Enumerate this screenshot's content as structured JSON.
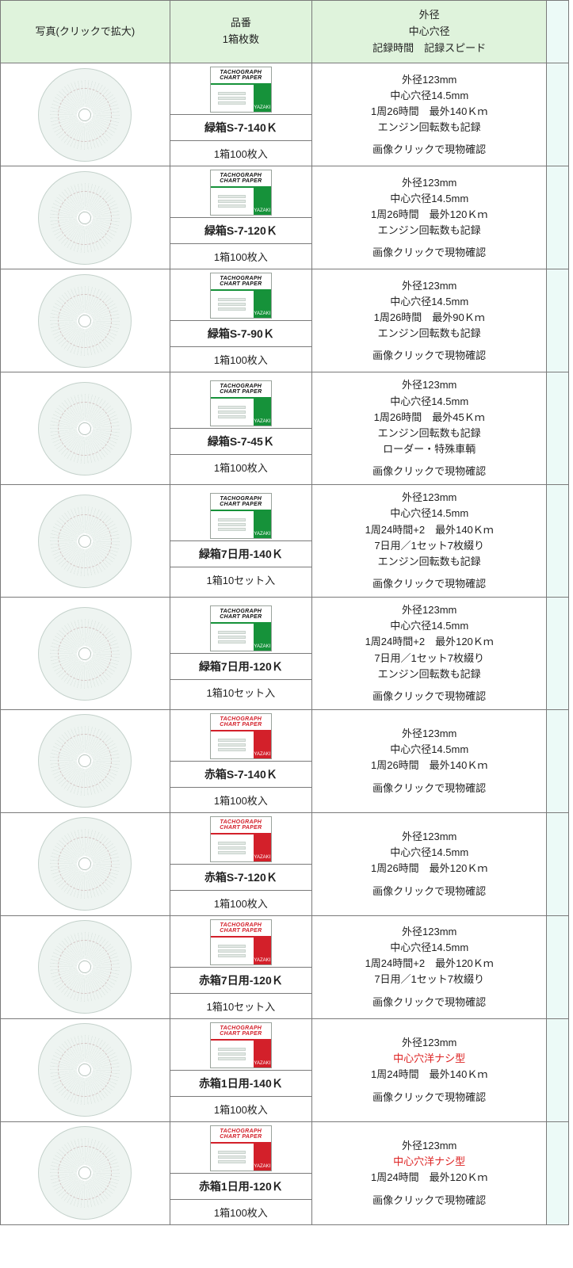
{
  "header": {
    "photo": "写真(クリックで拡大)",
    "model_line1": "品番",
    "model_line2": "1箱枚数",
    "spec_line1": "外径",
    "spec_line2": "中心穴径",
    "spec_line3": "記録時間　記録スピード"
  },
  "box_label_line1": "TACHOGRAPH",
  "box_label_line2": "CHART PAPER",
  "box_brand": "YAZAKI",
  "click_note": "画像クリックで現物確認",
  "spec_common": {
    "od": "外径123mm",
    "hole": "中心穴径14.5mm",
    "nohole_red": "中心穴洋ナシ型"
  },
  "rows": [
    {
      "color": "green",
      "code": "緑箱S-7-140Ｋ",
      "qty": "1箱100枚入",
      "spec": [
        "外径123mm",
        "中心穴径14.5mm",
        "1周26時間　最外140Ｋｍ",
        "エンジン回転数も記録"
      ],
      "note": true
    },
    {
      "color": "green",
      "code": "緑箱S-7-120Ｋ",
      "qty": "1箱100枚入",
      "spec": [
        "外径123mm",
        "中心穴径14.5mm",
        "1周26時間　最外120Ｋｍ",
        "エンジン回転数も記録"
      ],
      "note": true
    },
    {
      "color": "green",
      "code": "緑箱S-7-90Ｋ",
      "qty": "1箱100枚入",
      "spec": [
        "外径123mm",
        "中心穴径14.5mm",
        "1周26時間　最外90Ｋｍ",
        "エンジン回転数も記録"
      ],
      "note": true
    },
    {
      "color": "green",
      "code": "緑箱S-7-45Ｋ",
      "qty": "1箱100枚入",
      "spec": [
        "外径123mm",
        "中心穴径14.5mm",
        "1周26時間　最外45Ｋｍ",
        "エンジン回転数も記録",
        "ローダー・特殊車輌"
      ],
      "note": true
    },
    {
      "color": "green",
      "code": "緑箱7日用-140Ｋ",
      "qty": "1箱10セット入",
      "spec": [
        "外径123mm",
        "中心穴径14.5mm",
        "1周24時間+2　最外140Ｋｍ",
        "7日用／1セット7枚綴り",
        "エンジン回転数も記録"
      ],
      "note": true
    },
    {
      "color": "green",
      "code": "緑箱7日用-120Ｋ",
      "qty": "1箱10セット入",
      "spec": [
        "外径123mm",
        "中心穴径14.5mm",
        "1周24時間+2　最外120Ｋｍ",
        "7日用／1セット7枚綴り",
        "エンジン回転数も記録"
      ],
      "note": true
    },
    {
      "color": "red",
      "code": "赤箱S-7-140Ｋ",
      "qty": "1箱100枚入",
      "spec": [
        "外径123mm",
        "中心穴径14.5mm",
        "1周26時間　最外140Ｋｍ"
      ],
      "note": true
    },
    {
      "color": "red",
      "code": "赤箱S-7-120Ｋ",
      "qty": "1箱100枚入",
      "spec": [
        "外径123mm",
        "中心穴径14.5mm",
        "1周26時間　最外120Ｋｍ"
      ],
      "note": true
    },
    {
      "color": "red",
      "code": "赤箱7日用-120Ｋ",
      "qty": "1箱10セット入",
      "spec": [
        "外径123mm",
        "中心穴径14.5mm",
        "1周24時間+2　最外120Ｋｍ",
        "7日用／1セット7枚綴り"
      ],
      "note": true
    },
    {
      "color": "red",
      "code": "赤箱1日用-140Ｋ",
      "qty": "1箱100枚入",
      "spec": [
        "外径123mm",
        {
          "text": "中心穴洋ナシ型",
          "red": true
        },
        "1周24時間　最外140Ｋｍ"
      ],
      "note": true
    },
    {
      "color": "red",
      "code": "赤箱1日用-120Ｋ",
      "qty": "1箱100枚入",
      "spec": [
        "外径123mm",
        {
          "text": "中心穴洋ナシ型",
          "red": true
        },
        "1周24時間　最外120Ｋｍ"
      ],
      "note": true
    }
  ]
}
